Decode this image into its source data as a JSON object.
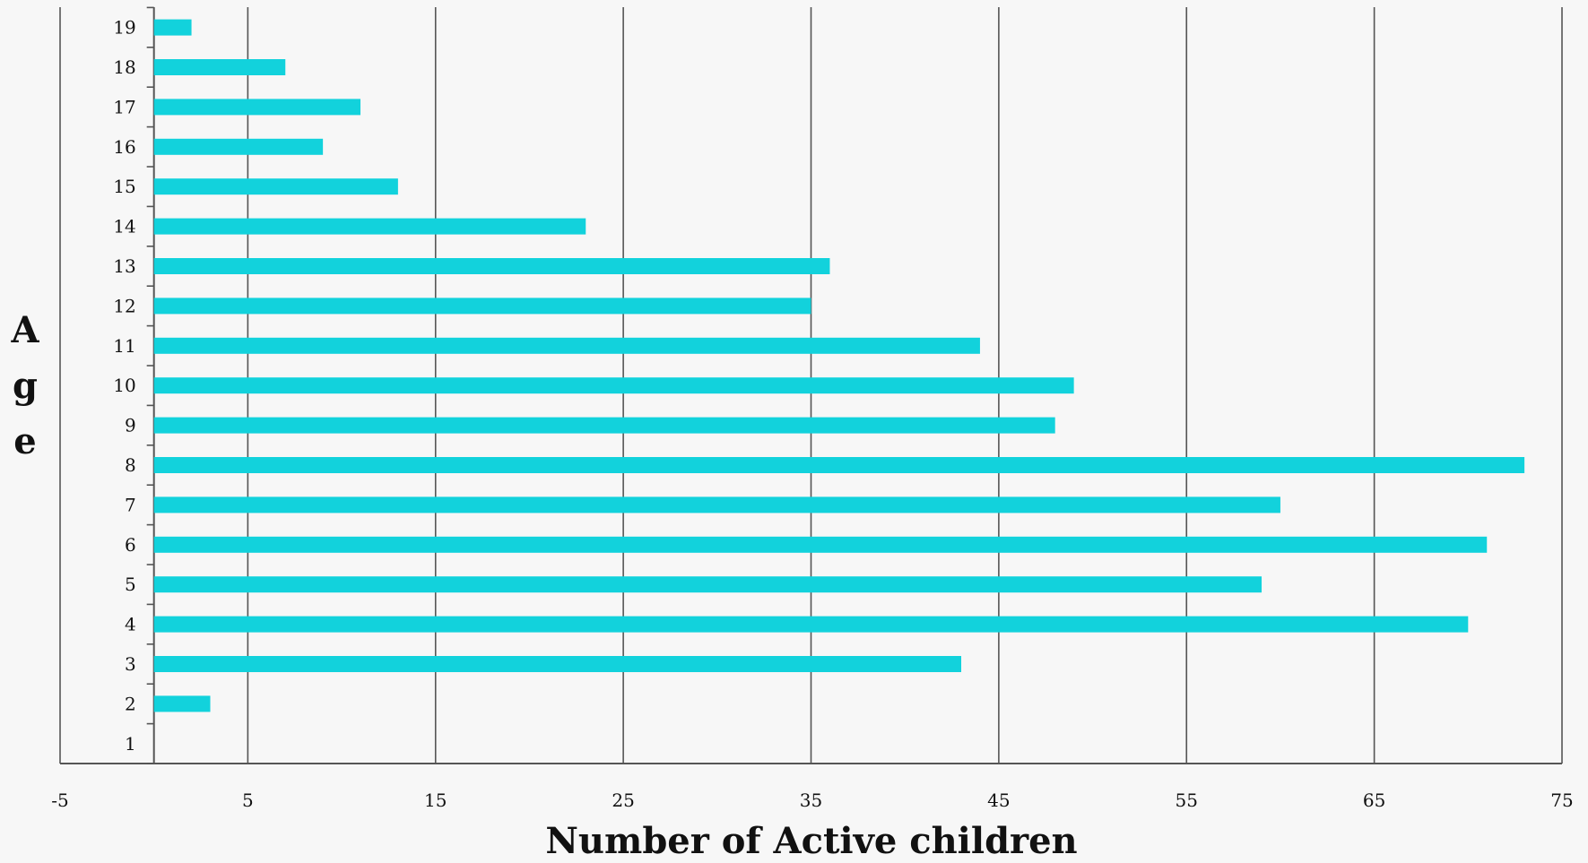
{
  "chart_data": {
    "type": "bar",
    "orientation": "horizontal",
    "xlabel": "Number of Active children",
    "ylabel": "Age",
    "categories": [
      "1",
      "2",
      "3",
      "4",
      "5",
      "6",
      "7",
      "8",
      "9",
      "10",
      "11",
      "12",
      "13",
      "14",
      "15",
      "16",
      "17",
      "18",
      "19"
    ],
    "values": [
      0,
      3,
      43,
      70,
      59,
      71,
      60,
      73,
      48,
      49,
      44,
      35,
      36,
      23,
      13,
      9,
      11,
      7,
      2
    ],
    "xlim": [
      -5,
      75
    ],
    "xticks": [
      "-5",
      "5",
      "15",
      "25",
      "35",
      "45",
      "55",
      "65",
      "75"
    ],
    "grid": "vertical",
    "legend": "none",
    "colors": {
      "bar": "#12d2dc",
      "grid": "#555555",
      "axis": "#555555"
    }
  }
}
